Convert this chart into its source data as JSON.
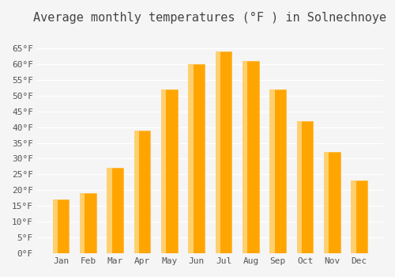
{
  "title": "Average monthly temperatures (°F ) in Solnechnoye",
  "months": [
    "Jan",
    "Feb",
    "Mar",
    "Apr",
    "May",
    "Jun",
    "Jul",
    "Aug",
    "Sep",
    "Oct",
    "Nov",
    "Dec"
  ],
  "values": [
    17,
    19,
    27,
    39,
    52,
    60,
    64,
    61,
    52,
    42,
    32,
    23
  ],
  "bar_color": "#FFA500",
  "bar_color_edge": "#FFB833",
  "ylim": [
    0,
    70
  ],
  "yticks": [
    0,
    5,
    10,
    15,
    20,
    25,
    30,
    35,
    40,
    45,
    50,
    55,
    60,
    65
  ],
  "ytick_labels": [
    "0°F",
    "5°F",
    "10°F",
    "15°F",
    "20°F",
    "25°F",
    "30°F",
    "35°F",
    "40°F",
    "45°F",
    "50°F",
    "55°F",
    "60°F",
    "65°F"
  ],
  "background_color": "#f5f5f5",
  "grid_color": "#ffffff",
  "title_fontsize": 11,
  "tick_fontsize": 8
}
